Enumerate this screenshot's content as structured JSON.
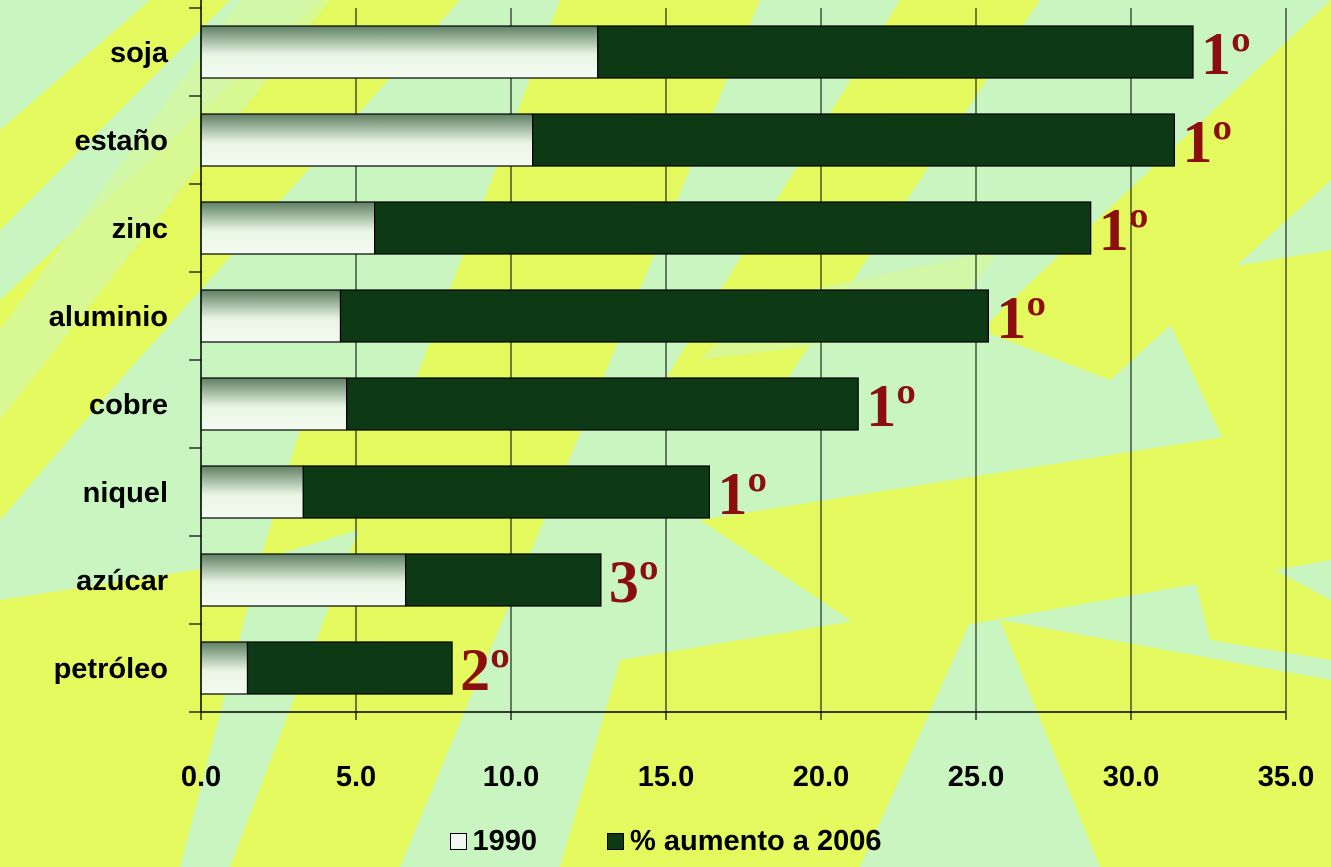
{
  "colors": {
    "background": "#c8f5c0",
    "leaf": "#e6fa58",
    "series_1990": "#e8f5e3",
    "series_1990_shade": "#5e7f63",
    "series_increase": "#0d3a14",
    "rank_text": "#8b0f0f"
  },
  "chart_data": {
    "type": "bar",
    "orientation": "horizontal",
    "stacked": true,
    "categories": [
      "soja",
      "estaño",
      "zinc",
      "aluminio",
      "cobre",
      "niquel",
      "azúcar",
      "petróleo"
    ],
    "series": [
      {
        "name": "1990",
        "values": [
          12.8,
          10.7,
          5.6,
          4.5,
          4.7,
          3.3,
          6.6,
          1.5
        ]
      },
      {
        "name": "% aumento a 2006",
        "values": [
          19.2,
          20.7,
          23.1,
          20.9,
          16.5,
          13.1,
          6.3,
          6.6
        ]
      }
    ],
    "annotations": [
      "1º",
      "1º",
      "1º",
      "1º",
      "1º",
      "1º",
      "3º",
      "2º"
    ],
    "xlim": [
      0,
      35
    ],
    "xticks": [
      "0.0",
      "5.0",
      "10.0",
      "15.0",
      "20.0",
      "25.0",
      "30.0",
      "35.0"
    ],
    "grid": "vertical",
    "legend_position": "bottom"
  }
}
